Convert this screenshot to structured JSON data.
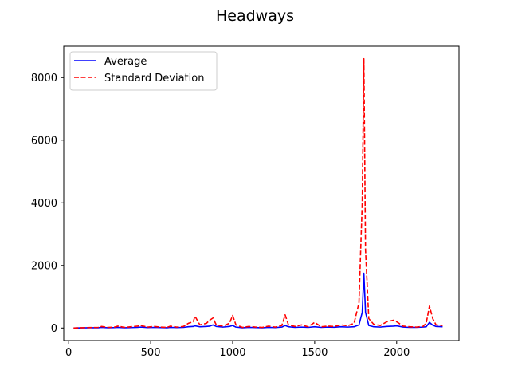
{
  "chart_data": {
    "type": "line",
    "title": "Headways",
    "xlabel": "",
    "ylabel": "",
    "xlim": [
      -30,
      2380
    ],
    "ylim": [
      -400,
      9000
    ],
    "xticks": [
      0,
      500,
      1000,
      1500,
      2000
    ],
    "yticks": [
      0,
      2000,
      4000,
      6000,
      8000
    ],
    "grid": false,
    "legend_placement": "top-left",
    "series": [
      {
        "name": "Average",
        "color": "#0000ff",
        "style": "solid",
        "x": [
          30,
          80,
          130,
          180,
          200,
          240,
          280,
          300,
          340,
          380,
          420,
          440,
          480,
          520,
          560,
          600,
          620,
          660,
          700,
          730,
          760,
          770,
          800,
          840,
          860,
          880,
          900,
          940,
          980,
          1000,
          1020,
          1060,
          1100,
          1140,
          1180,
          1220,
          1260,
          1300,
          1320,
          1340,
          1380,
          1420,
          1460,
          1500,
          1540,
          1580,
          1620,
          1660,
          1700,
          1740,
          1770,
          1790,
          1800,
          1810,
          1830,
          1860,
          1900,
          1940,
          1980,
          2000,
          2040,
          2080,
          2120,
          2160,
          2180,
          2200,
          2220,
          2240,
          2280
        ],
        "y": [
          0,
          5,
          8,
          10,
          20,
          10,
          15,
          20,
          10,
          15,
          20,
          30,
          15,
          20,
          15,
          10,
          20,
          15,
          20,
          40,
          50,
          70,
          40,
          50,
          60,
          100,
          50,
          30,
          50,
          80,
          30,
          10,
          20,
          15,
          10,
          20,
          15,
          30,
          80,
          40,
          20,
          30,
          20,
          40,
          20,
          30,
          25,
          40,
          30,
          40,
          100,
          500,
          1750,
          500,
          80,
          40,
          30,
          50,
          60,
          70,
          30,
          20,
          20,
          30,
          40,
          180,
          90,
          50,
          40
        ]
      },
      {
        "name": "Standard Deviation",
        "color": "#ff0000",
        "style": "dashed",
        "x": [
          30,
          80,
          130,
          180,
          200,
          240,
          280,
          300,
          340,
          380,
          420,
          440,
          480,
          520,
          560,
          600,
          620,
          660,
          700,
          730,
          760,
          770,
          800,
          840,
          860,
          880,
          900,
          940,
          980,
          1000,
          1020,
          1060,
          1100,
          1140,
          1180,
          1220,
          1260,
          1300,
          1320,
          1340,
          1380,
          1420,
          1460,
          1500,
          1540,
          1580,
          1620,
          1660,
          1700,
          1740,
          1770,
          1790,
          1800,
          1810,
          1830,
          1860,
          1900,
          1940,
          1980,
          2000,
          2040,
          2080,
          2120,
          2160,
          2180,
          2200,
          2220,
          2240,
          2280
        ],
        "y": [
          0,
          10,
          15,
          20,
          50,
          20,
          30,
          60,
          20,
          40,
          60,
          80,
          30,
          50,
          30,
          20,
          60,
          30,
          50,
          150,
          200,
          380,
          100,
          150,
          250,
          320,
          100,
          60,
          150,
          400,
          100,
          20,
          50,
          30,
          20,
          60,
          30,
          80,
          420,
          100,
          50,
          100,
          40,
          180,
          40,
          60,
          50,
          100,
          70,
          150,
          800,
          4000,
          8600,
          2500,
          300,
          120,
          80,
          200,
          250,
          200,
          60,
          40,
          30,
          50,
          150,
          700,
          300,
          100,
          80
        ]
      }
    ]
  }
}
